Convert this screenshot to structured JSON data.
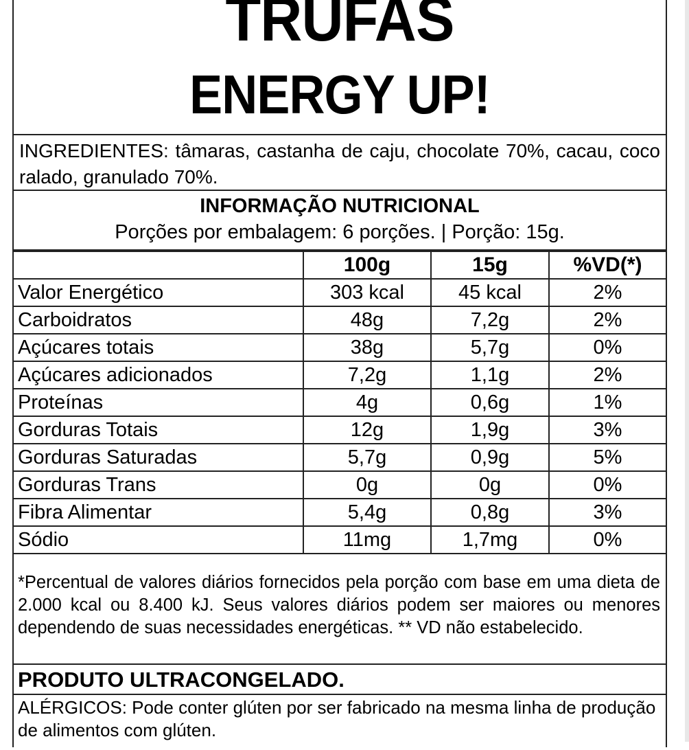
{
  "title": {
    "line1": "TRUFAS",
    "line2": "ENERGY UP!"
  },
  "ingredients": "INGREDIENTES: tâmaras, castanha de caju, chocolate 70%, cacau, coco ralado, granulado 70%.",
  "nutrition": {
    "heading": "INFORMAÇÃO NUTRICIONAL",
    "serving": "Porções por embalagem: 6 porções. | Porção: 15g.",
    "columns": [
      "",
      "100g",
      "15g",
      "%VD(*)"
    ],
    "rows": [
      [
        "Valor Energético",
        "303 kcal",
        "45 kcal",
        "2%"
      ],
      [
        "Carboidratos",
        "48g",
        "7,2g",
        "2%"
      ],
      [
        "Açúcares totais",
        "38g",
        "5,7g",
        "0%"
      ],
      [
        "Açúcares adicionados",
        "7,2g",
        "1,1g",
        "2%"
      ],
      [
        "Proteínas",
        "4g",
        "0,6g",
        "1%"
      ],
      [
        "Gorduras Totais",
        "12g",
        "1,9g",
        "3%"
      ],
      [
        "Gorduras Saturadas",
        "5,7g",
        "0,9g",
        "5%"
      ],
      [
        "Gorduras Trans",
        "0g",
        "0g",
        "0%"
      ],
      [
        "Fibra Alimentar",
        "5,4g",
        "0,8g",
        "3%"
      ],
      [
        "Sódio",
        "11mg",
        "1,7mg",
        "0%"
      ]
    ]
  },
  "footnote": "*Percentual de valores diários fornecidos pela porção com base em uma dieta de 2.000 kcal ou 8.400 kJ. Seus valores diários podem ser maiores ou menores dependendo de suas necessidades energéticas. ** VD não estabelecido.",
  "product_note": "PRODUTO ULTRACONGELADO.",
  "allergens": "ALÉRGICOS: Pode conter glúten por ser fabricado na mesma linha de produção de alimentos com glúten."
}
